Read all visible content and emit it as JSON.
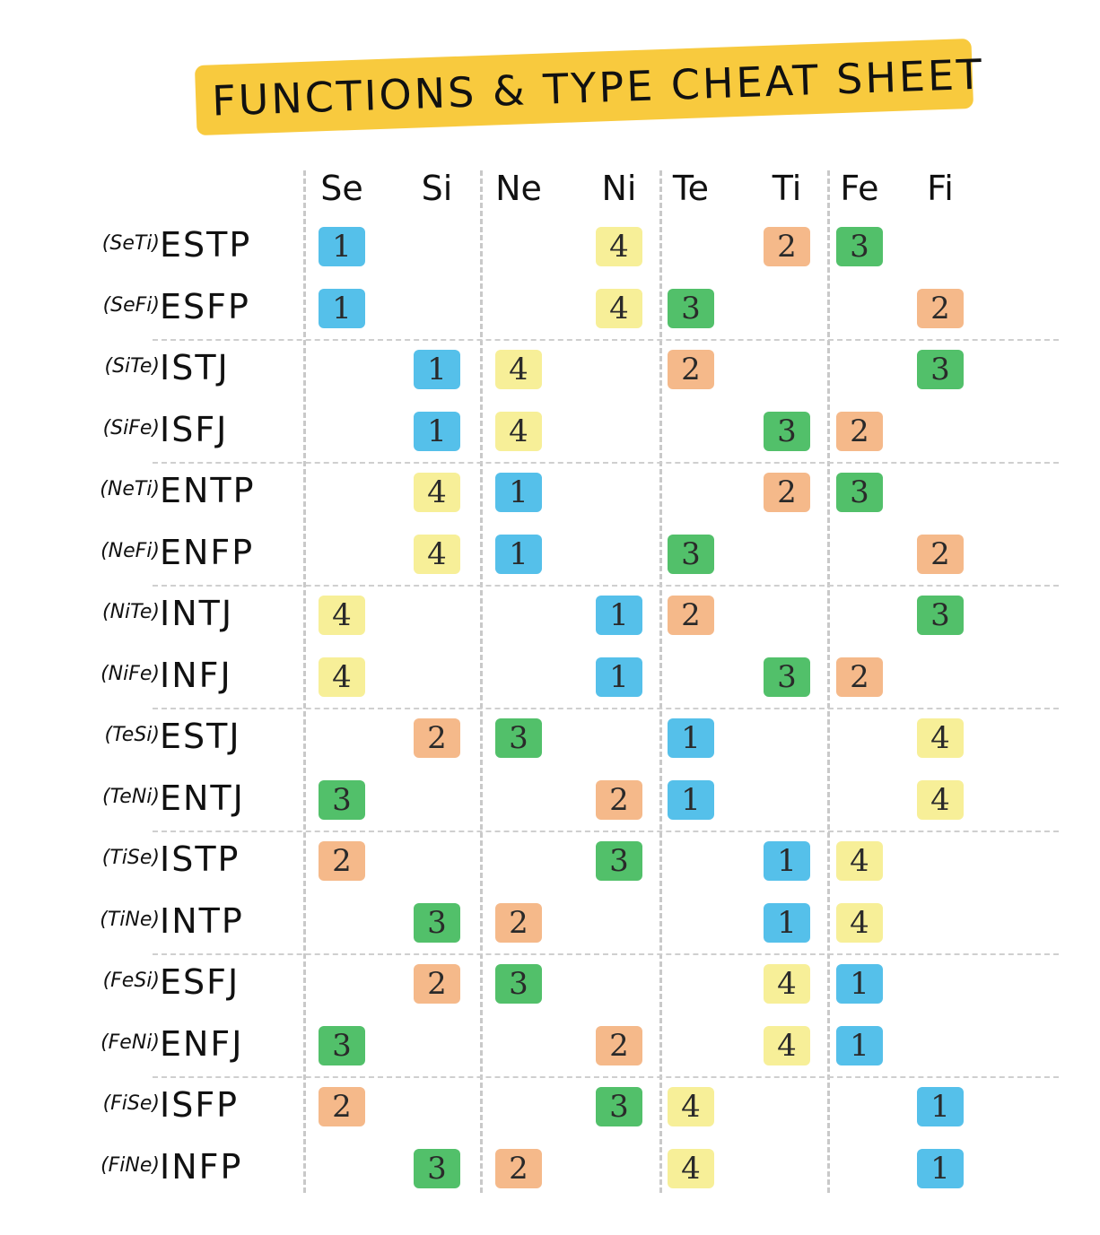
{
  "title": "FUNCTIONS & TYPE CHEAT SHEET",
  "functions": [
    "Se",
    "Si",
    "Ne",
    "Ni",
    "Te",
    "Ti",
    "Fe",
    "Fi"
  ],
  "rank_colors": {
    "1": "#55c0ea",
    "2": "#f5b98a",
    "3": "#52c06a",
    "4": "#f7ef98"
  },
  "types": [
    {
      "code": "(SeTi)",
      "type": "ESTP",
      "ranks": {
        "Se": "1",
        "Ni": "4",
        "Ti": "2",
        "Fe": "3"
      }
    },
    {
      "code": "(SeFi)",
      "type": "ESFP",
      "ranks": {
        "Se": "1",
        "Ni": "4",
        "Te": "3",
        "Fi": "2"
      }
    },
    {
      "code": "(SiTe)",
      "type": "ISTJ",
      "ranks": {
        "Si": "1",
        "Ne": "4",
        "Te": "2",
        "Fi": "3"
      }
    },
    {
      "code": "(SiFe)",
      "type": "ISFJ",
      "ranks": {
        "Si": "1",
        "Ne": "4",
        "Ti": "3",
        "Fe": "2"
      }
    },
    {
      "code": "(NeTi)",
      "type": "ENTP",
      "ranks": {
        "Si": "4",
        "Ne": "1",
        "Ti": "2",
        "Fe": "3"
      }
    },
    {
      "code": "(NeFi)",
      "type": "ENFP",
      "ranks": {
        "Si": "4",
        "Ne": "1",
        "Te": "3",
        "Fi": "2"
      }
    },
    {
      "code": "(NiTe)",
      "type": "INTJ",
      "ranks": {
        "Se": "4",
        "Ni": "1",
        "Te": "2",
        "Fi": "3"
      }
    },
    {
      "code": "(NiFe)",
      "type": "INFJ",
      "ranks": {
        "Se": "4",
        "Ni": "1",
        "Ti": "3",
        "Fe": "2"
      }
    },
    {
      "code": "(TeSi)",
      "type": "ESTJ",
      "ranks": {
        "Si": "2",
        "Ne": "3",
        "Te": "1",
        "Fi": "4"
      }
    },
    {
      "code": "(TeNi)",
      "type": "ENTJ",
      "ranks": {
        "Se": "3",
        "Ni": "2",
        "Te": "1",
        "Fi": "4"
      }
    },
    {
      "code": "(TiSe)",
      "type": "ISTP",
      "ranks": {
        "Se": "2",
        "Ni": "3",
        "Ti": "1",
        "Fe": "4"
      }
    },
    {
      "code": "(TiNe)",
      "type": "INTP",
      "ranks": {
        "Si": "3",
        "Ne": "2",
        "Ti": "1",
        "Fe": "4"
      }
    },
    {
      "code": "(FeSi)",
      "type": "ESFJ",
      "ranks": {
        "Si": "2",
        "Ne": "3",
        "Ti": "4",
        "Fe": "1"
      }
    },
    {
      "code": "(FeNi)",
      "type": "ENFJ",
      "ranks": {
        "Se": "3",
        "Ni": "2",
        "Ti": "4",
        "Fe": "1"
      }
    },
    {
      "code": "(FiSe)",
      "type": "ISFP",
      "ranks": {
        "Se": "2",
        "Ni": "3",
        "Te": "4",
        "Fi": "1"
      }
    },
    {
      "code": "(FiNe)",
      "type": "INFP",
      "ranks": {
        "Si": "3",
        "Ne": "2",
        "Te": "4",
        "Fi": "1"
      }
    }
  ]
}
